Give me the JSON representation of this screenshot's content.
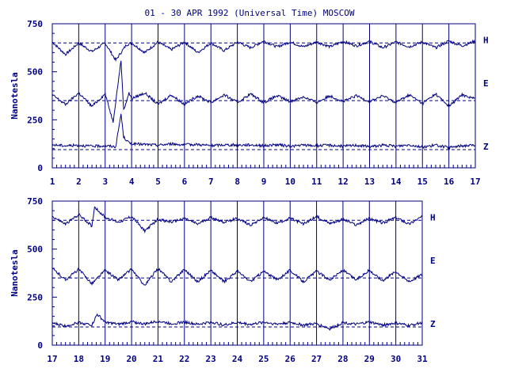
{
  "title": "01 - 30 APR 1992 (Universal Time) MOSCOW",
  "colors": {
    "ink": "#00007f",
    "background": "#ffffff"
  },
  "chart_data": [
    {
      "type": "line",
      "panel": "top",
      "ylabel": "Nanotesla",
      "ylim": [
        0,
        750
      ],
      "yticks": [
        0,
        250,
        500,
        750
      ],
      "xlim": [
        1,
        17
      ],
      "xticks": [
        1,
        2,
        3,
        4,
        5,
        6,
        7,
        8,
        9,
        10,
        11,
        12,
        13,
        14,
        15,
        16,
        17
      ],
      "grid": "vertical day lines",
      "series": [
        {
          "name": "H",
          "baseline": 650,
          "x": [
            1,
            1.5,
            2,
            2.5,
            3,
            3.4,
            3.6,
            3.8,
            4,
            4.5,
            5,
            5.5,
            6,
            6.5,
            7,
            7.5,
            8,
            8.5,
            9,
            9.5,
            10,
            10.5,
            11,
            11.5,
            12,
            12.5,
            13,
            13.5,
            14,
            14.5,
            15,
            15.5,
            16,
            16.5,
            17
          ],
          "values": [
            655,
            590,
            650,
            605,
            650,
            560,
            600,
            640,
            650,
            600,
            655,
            615,
            655,
            600,
            650,
            610,
            655,
            625,
            660,
            630,
            655,
            630,
            655,
            630,
            658,
            635,
            658,
            625,
            655,
            630,
            655,
            625,
            660,
            635,
            660
          ]
        },
        {
          "name": "E",
          "baseline": 350,
          "x": [
            1,
            1.5,
            2,
            2.5,
            3,
            3.3,
            3.6,
            3.7,
            3.9,
            4,
            4.5,
            5,
            5.5,
            6,
            6.5,
            7,
            7.5,
            8,
            8.5,
            9,
            9.5,
            10,
            10.5,
            11,
            11.5,
            12,
            12.5,
            13,
            13.5,
            14,
            14.5,
            15,
            15.5,
            16,
            16.5,
            17
          ],
          "values": [
            380,
            330,
            390,
            320,
            385,
            240,
            560,
            300,
            390,
            360,
            390,
            330,
            380,
            330,
            375,
            340,
            380,
            340,
            385,
            340,
            375,
            345,
            370,
            340,
            375,
            345,
            375,
            345,
            375,
            340,
            380,
            335,
            385,
            320,
            380,
            360
          ]
        },
        {
          "name": "Z",
          "baseline": 95,
          "x": [
            1,
            1.5,
            2,
            2.5,
            3,
            3.4,
            3.6,
            3.7,
            3.9,
            4,
            4.5,
            5,
            5.5,
            6,
            6.5,
            7,
            7.5,
            8,
            8.5,
            9,
            9.5,
            10,
            10.5,
            11,
            11.5,
            12,
            12.5,
            13,
            13.5,
            14,
            14.5,
            15,
            15.5,
            16,
            16.5,
            17
          ],
          "values": [
            120,
            115,
            118,
            112,
            115,
            110,
            280,
            160,
            130,
            125,
            122,
            118,
            125,
            120,
            122,
            115,
            120,
            118,
            120,
            115,
            120,
            112,
            118,
            115,
            118,
            112,
            118,
            110,
            118,
            112,
            120,
            108,
            118,
            105,
            115,
            118
          ]
        }
      ]
    },
    {
      "type": "line",
      "panel": "bottom",
      "ylabel": "Nanotesla",
      "ylim": [
        0,
        750
      ],
      "yticks": [
        0,
        250,
        500,
        750
      ],
      "xlim": [
        17,
        31
      ],
      "xticks": [
        17,
        18,
        19,
        20,
        21,
        22,
        23,
        24,
        25,
        26,
        27,
        28,
        29,
        30,
        31
      ],
      "grid": "vertical day lines",
      "series": [
        {
          "name": "H",
          "baseline": 650,
          "x": [
            17,
            17.5,
            18,
            18.5,
            18.6,
            19,
            19.5,
            20,
            20.5,
            21,
            21.5,
            22,
            22.5,
            23,
            23.5,
            24,
            24.5,
            25,
            25.5,
            26,
            26.5,
            27,
            27.5,
            28,
            28.5,
            29,
            29.5,
            30,
            30.5,
            31
          ],
          "values": [
            670,
            630,
            680,
            620,
            720,
            665,
            640,
            670,
            595,
            655,
            640,
            660,
            630,
            665,
            640,
            660,
            625,
            665,
            635,
            660,
            630,
            670,
            635,
            655,
            625,
            660,
            635,
            665,
            630,
            670
          ]
        },
        {
          "name": "E",
          "baseline": 350,
          "x": [
            17,
            17.5,
            18,
            18.5,
            19,
            19.5,
            20,
            20.5,
            21,
            21.5,
            22,
            22.5,
            23,
            23.5,
            24,
            24.5,
            25,
            25.5,
            26,
            26.5,
            27,
            27.5,
            28,
            28.5,
            29,
            29.5,
            30,
            30.5,
            31
          ],
          "values": [
            400,
            340,
            395,
            320,
            390,
            340,
            395,
            310,
            400,
            330,
            395,
            330,
            390,
            330,
            385,
            330,
            385,
            340,
            390,
            330,
            385,
            340,
            390,
            340,
            390,
            335,
            385,
            330,
            370
          ]
        },
        {
          "name": "Z",
          "baseline": 95,
          "x": [
            17,
            17.5,
            18,
            18.5,
            18.7,
            19,
            19.5,
            20,
            20.5,
            21,
            21.5,
            22,
            22.5,
            23,
            23.5,
            24,
            24.5,
            25,
            25.5,
            26,
            26.5,
            27,
            27.5,
            28,
            28.5,
            29,
            29.5,
            30,
            30.5,
            31
          ],
          "values": [
            115,
            100,
            118,
            105,
            160,
            120,
            108,
            122,
            110,
            125,
            112,
            120,
            108,
            120,
            105,
            118,
            108,
            120,
            110,
            118,
            105,
            112,
            85,
            118,
            108,
            120,
            105,
            115,
            102,
            118
          ]
        }
      ]
    }
  ]
}
